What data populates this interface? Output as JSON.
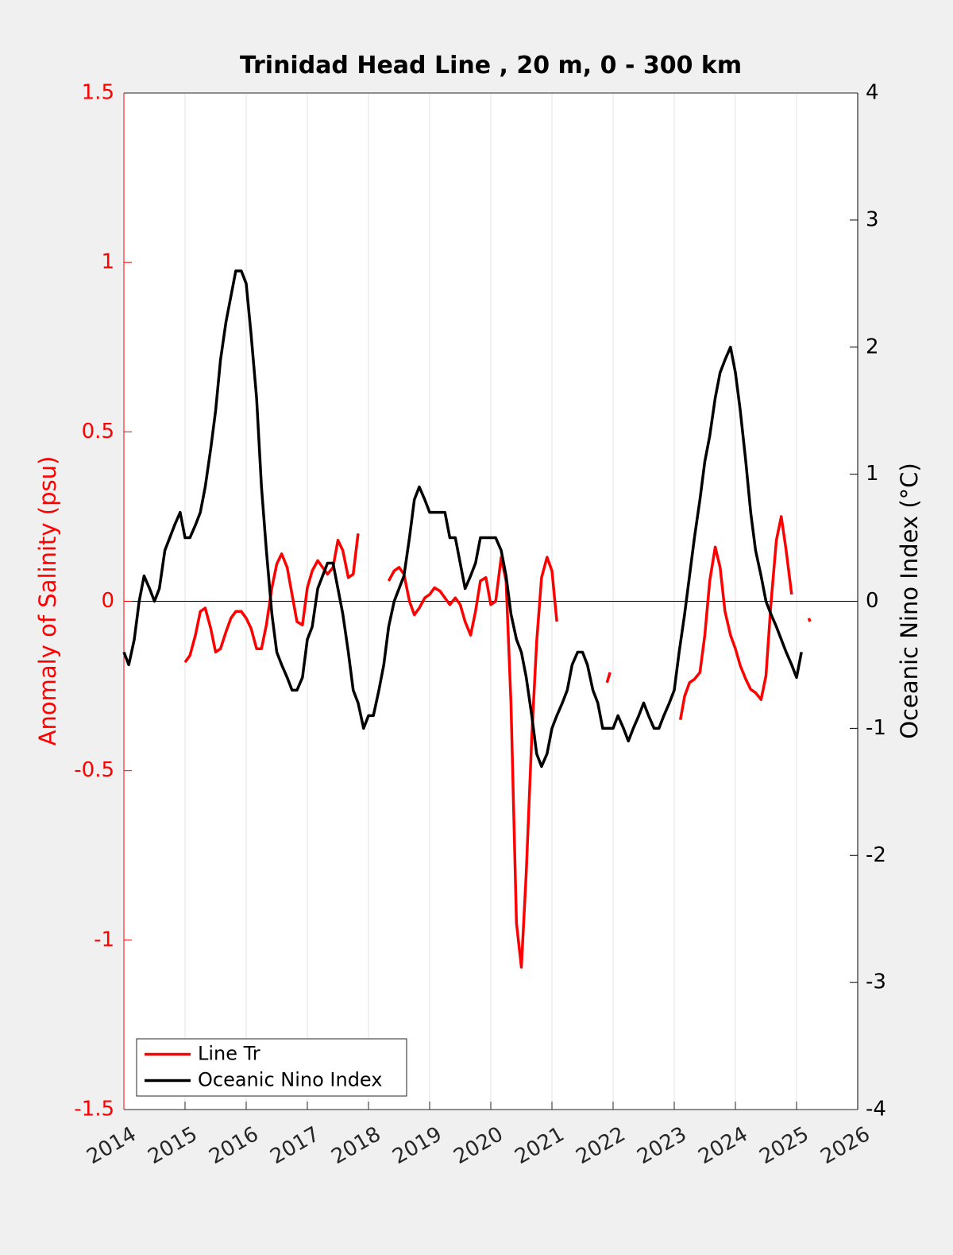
{
  "chart_data": {
    "type": "line",
    "title": "Trinidad Head Line , 20 m, 0 - 300 km",
    "ylabel": "Anomaly of Salinity (psu)",
    "y2label": "Oceanic Nino Index (°C)",
    "y_axis_color": "#ff0000",
    "y2_axis_color": "#000000",
    "xlim": [
      2014,
      2026
    ],
    "xticks": [
      2014,
      2015,
      2016,
      2017,
      2018,
      2019,
      2020,
      2021,
      2022,
      2023,
      2024,
      2025,
      2026
    ],
    "ylim": [
      -1.5,
      1.5
    ],
    "yticks": [
      -1.5,
      -1,
      -0.5,
      0,
      0.5,
      1,
      1.5
    ],
    "y2lim": [
      -4,
      4
    ],
    "y2ticks": [
      -4,
      -3,
      -2,
      -1,
      0,
      1,
      2,
      3,
      4
    ],
    "xgrid": true,
    "zero_line": true,
    "legend_loc": "lower left",
    "series": [
      {
        "name": "Line Tr",
        "color": "#ff0000",
        "axis": "y",
        "x": [
          2015,
          2015.08,
          2015.17,
          2015.25,
          2015.33,
          2015.42,
          2015.5,
          2015.58,
          2015.67,
          2015.75,
          2015.83,
          2015.92,
          2016,
          2016.08,
          2016.17,
          2016.25,
          2016.33,
          2016.42,
          2016.5,
          2016.58,
          2016.67,
          2016.75,
          2016.83,
          2016.92,
          2017,
          2017.08,
          2017.17,
          2017.25,
          2017.33,
          2017.42,
          2017.5,
          2017.58,
          2017.67,
          2017.75,
          2017.83,
          2018,
          2018.33,
          2018.42,
          2018.5,
          2018.58,
          2018.67,
          2018.75,
          2018.83,
          2018.92,
          2019,
          2019.08,
          2019.17,
          2019.25,
          2019.33,
          2019.42,
          2019.5,
          2019.58,
          2019.67,
          2019.75,
          2019.83,
          2019.92,
          2020,
          2020.08,
          2020.17,
          2020.25,
          2020.33,
          2020.42,
          2020.5,
          2020.58,
          2020.67,
          2020.75,
          2020.83,
          2020.92,
          2021,
          2021.08,
          2021.5,
          2021.9,
          2021.95,
          2022.5,
          2023.1,
          2023.17,
          2023.25,
          2023.33,
          2023.42,
          2023.5,
          2023.58,
          2023.67,
          2023.75,
          2023.83,
          2023.92,
          2024,
          2024.08,
          2024.17,
          2024.25,
          2024.33,
          2024.42,
          2024.5,
          2024.58,
          2024.67,
          2024.75,
          2024.83,
          2024.92,
          2025.1,
          2025.2,
          2025.22
        ],
        "values": [
          -0.18,
          -0.16,
          -0.1,
          -0.03,
          -0.02,
          -0.08,
          -0.15,
          -0.14,
          -0.09,
          -0.05,
          -0.03,
          -0.03,
          -0.05,
          -0.08,
          -0.14,
          -0.14,
          -0.07,
          0.04,
          0.11,
          0.14,
          0.1,
          0.02,
          -0.06,
          -0.07,
          0.04,
          0.09,
          0.12,
          0.1,
          0.08,
          0.1,
          0.18,
          0.15,
          0.07,
          0.08,
          0.2,
          null,
          0.06,
          0.09,
          0.1,
          0.08,
          0,
          -0.04,
          -0.02,
          0.01,
          0.02,
          0.04,
          0.03,
          0.01,
          -0.01,
          0.01,
          -0.01,
          -0.06,
          -0.1,
          -0.03,
          0.06,
          0.07,
          -0.01,
          0,
          0.13,
          0.06,
          -0.3,
          -0.95,
          -1.08,
          -0.8,
          -0.4,
          -0.12,
          0.07,
          0.13,
          0.09,
          -0.06,
          null,
          -0.24,
          -0.21,
          null,
          -0.35,
          -0.28,
          -0.24,
          -0.23,
          -0.21,
          -0.1,
          0.06,
          0.16,
          0.1,
          -0.03,
          -0.1,
          -0.14,
          -0.19,
          -0.23,
          -0.26,
          -0.27,
          -0.29,
          -0.22,
          -0.01,
          0.18,
          0.25,
          0.15,
          0.02,
          null,
          -0.05,
          -0.06
        ]
      },
      {
        "name": "Oceanic Nino Index",
        "color": "#000000",
        "axis": "y2",
        "x": [
          2014,
          2014.08,
          2014.17,
          2014.25,
          2014.33,
          2014.42,
          2014.5,
          2014.58,
          2014.67,
          2014.75,
          2014.83,
          2014.92,
          2015,
          2015.08,
          2015.17,
          2015.25,
          2015.33,
          2015.42,
          2015.5,
          2015.58,
          2015.67,
          2015.75,
          2015.83,
          2015.92,
          2016,
          2016.08,
          2016.17,
          2016.25,
          2016.33,
          2016.42,
          2016.5,
          2016.58,
          2016.67,
          2016.75,
          2016.83,
          2016.92,
          2017,
          2017.08,
          2017.17,
          2017.25,
          2017.33,
          2017.42,
          2017.5,
          2017.58,
          2017.67,
          2017.75,
          2017.83,
          2017.92,
          2018,
          2018.08,
          2018.17,
          2018.25,
          2018.33,
          2018.42,
          2018.5,
          2018.58,
          2018.67,
          2018.75,
          2018.83,
          2018.92,
          2019,
          2019.08,
          2019.17,
          2019.25,
          2019.33,
          2019.42,
          2019.5,
          2019.58,
          2019.67,
          2019.75,
          2019.83,
          2019.92,
          2020,
          2020.08,
          2020.17,
          2020.25,
          2020.33,
          2020.42,
          2020.5,
          2020.58,
          2020.67,
          2020.75,
          2020.83,
          2020.92,
          2021,
          2021.08,
          2021.17,
          2021.25,
          2021.33,
          2021.42,
          2021.5,
          2021.58,
          2021.67,
          2021.75,
          2021.83,
          2021.92,
          2022,
          2022.08,
          2022.17,
          2022.25,
          2022.33,
          2022.42,
          2022.5,
          2022.58,
          2022.67,
          2022.75,
          2022.83,
          2022.92,
          2023,
          2023.08,
          2023.17,
          2023.25,
          2023.33,
          2023.42,
          2023.5,
          2023.58,
          2023.67,
          2023.75,
          2023.83,
          2023.92,
          2024,
          2024.08,
          2024.17,
          2024.25,
          2024.33,
          2024.42,
          2024.5,
          2024.58,
          2024.67,
          2024.75,
          2024.83,
          2024.92,
          2025,
          2025.08
        ],
        "values": [
          -0.4,
          -0.5,
          -0.3,
          0,
          0.2,
          0.1,
          0,
          0.1,
          0.4,
          0.5,
          0.6,
          0.7,
          0.5,
          0.5,
          0.6,
          0.7,
          0.9,
          1.2,
          1.5,
          1.9,
          2.2,
          2.4,
          2.6,
          2.6,
          2.5,
          2.1,
          1.6,
          0.9,
          0.4,
          -0.1,
          -0.4,
          -0.5,
          -0.6,
          -0.7,
          -0.7,
          -0.6,
          -0.3,
          -0.2,
          0.1,
          0.2,
          0.3,
          0.3,
          0.1,
          -0.1,
          -0.4,
          -0.7,
          -0.8,
          -1,
          -0.9,
          -0.9,
          -0.7,
          -0.5,
          -0.2,
          0,
          0.1,
          0.2,
          0.5,
          0.8,
          0.9,
          0.8,
          0.7,
          0.7,
          0.7,
          0.7,
          0.5,
          0.5,
          0.3,
          0.1,
          0.2,
          0.3,
          0.5,
          0.5,
          0.5,
          0.5,
          0.4,
          0.2,
          -0.1,
          -0.3,
          -0.4,
          -0.6,
          -0.9,
          -1.2,
          -1.3,
          -1.2,
          -1,
          -0.9,
          -0.8,
          -0.7,
          -0.5,
          -0.4,
          -0.4,
          -0.5,
          -0.7,
          -0.8,
          -1,
          -1,
          -1,
          -0.9,
          -1,
          -1.1,
          -1,
          -0.9,
          -0.8,
          -0.9,
          -1,
          -1,
          -0.9,
          -0.8,
          -0.7,
          -0.4,
          -0.1,
          0.2,
          0.5,
          0.8,
          1.1,
          1.3,
          1.6,
          1.8,
          1.9,
          2,
          1.8,
          1.5,
          1.1,
          0.7,
          0.4,
          0.2,
          0,
          -0.1,
          -0.2,
          -0.3,
          -0.4,
          -0.5,
          -0.6,
          -0.4
        ]
      }
    ]
  }
}
